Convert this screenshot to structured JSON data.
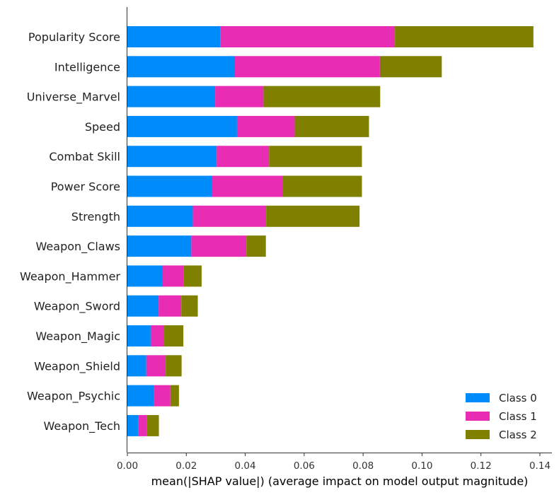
{
  "chart_data": {
    "type": "bar",
    "orientation": "horizontal",
    "stacked": true,
    "categories": [
      "Popularity Score",
      "Intelligence",
      "Universe_Marvel",
      "Speed",
      "Combat Skill",
      "Power Score",
      "Strength",
      "Weapon_Claws",
      "Weapon_Hammer",
      "Weapon_Sword",
      "Weapon_Magic",
      "Weapon_Shield",
      "Weapon_Psychic",
      "Weapon_Tech"
    ],
    "series": [
      {
        "name": "Class 0",
        "color": "#008bfb",
        "values": [
          0.0315,
          0.0365,
          0.0298,
          0.0372,
          0.0303,
          0.0287,
          0.0222,
          0.0217,
          0.012,
          0.0106,
          0.0079,
          0.0064,
          0.0089,
          0.0038
        ]
      },
      {
        "name": "Class 1",
        "color": "#e92cb4",
        "values": [
          0.0593,
          0.0492,
          0.0164,
          0.0196,
          0.0178,
          0.0239,
          0.0249,
          0.0187,
          0.007,
          0.0077,
          0.0046,
          0.0066,
          0.0057,
          0.0029
        ]
      },
      {
        "name": "Class 2",
        "color": "#808000",
        "values": [
          0.047,
          0.021,
          0.0396,
          0.0252,
          0.0315,
          0.027,
          0.0317,
          0.0066,
          0.0062,
          0.0056,
          0.0065,
          0.0054,
          0.0029,
          0.004
        ]
      }
    ],
    "xlabel": "mean(|SHAP value|) (average impact on model output magnitude)",
    "xlim": [
      0,
      0.1445
    ],
    "xticks": [
      "0.00",
      "0.02",
      "0.04",
      "0.06",
      "0.08",
      "0.10",
      "0.12",
      "0.14"
    ],
    "grid": false,
    "legend_position": "bottom-right"
  }
}
